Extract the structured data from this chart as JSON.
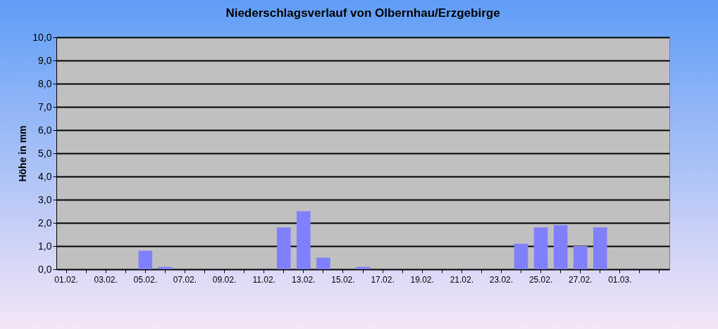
{
  "chart_data": {
    "type": "bar",
    "title": "Niederschlagsverlauf von Olbernhau/Erzgebirge",
    "ylabel": "Höhe in  mm",
    "categories": [
      "01.02.",
      null,
      "03.02.",
      null,
      "05.02.",
      null,
      "07.02.",
      null,
      "09.02.",
      null,
      "11.02.",
      null,
      "13.02.",
      null,
      "15.02.",
      null,
      "17.02.",
      null,
      "19.02.",
      null,
      "21.02.",
      null,
      "23.02.",
      null,
      "25.02.",
      null,
      "27.02.",
      null,
      "01.03.",
      null,
      null
    ],
    "values": [
      0,
      0,
      0,
      0,
      0.8,
      0.1,
      0,
      0,
      0,
      0,
      0,
      1.8,
      2.5,
      0.5,
      0,
      0.1,
      0,
      0,
      0,
      0,
      0,
      0,
      0,
      1.1,
      1.8,
      1.9,
      1.0,
      1.8,
      null,
      null,
      null
    ],
    "color": "#8080ff",
    "ylim": [
      0,
      10
    ],
    "yticks": [
      {
        "value": 0,
        "label": "0,0"
      },
      {
        "value": 1,
        "label": "1,0"
      },
      {
        "value": 2,
        "label": "2,0"
      },
      {
        "value": 3,
        "label": "3,0"
      },
      {
        "value": 4,
        "label": "4,0"
      },
      {
        "value": 5,
        "label": "5,0"
      },
      {
        "value": 6,
        "label": "6,0"
      },
      {
        "value": 7,
        "label": "7,0"
      },
      {
        "value": 8,
        "label": "8,0"
      },
      {
        "value": 9,
        "label": "9,0"
      },
      {
        "value": 10,
        "label": "10,0"
      }
    ],
    "grid": "y"
  }
}
